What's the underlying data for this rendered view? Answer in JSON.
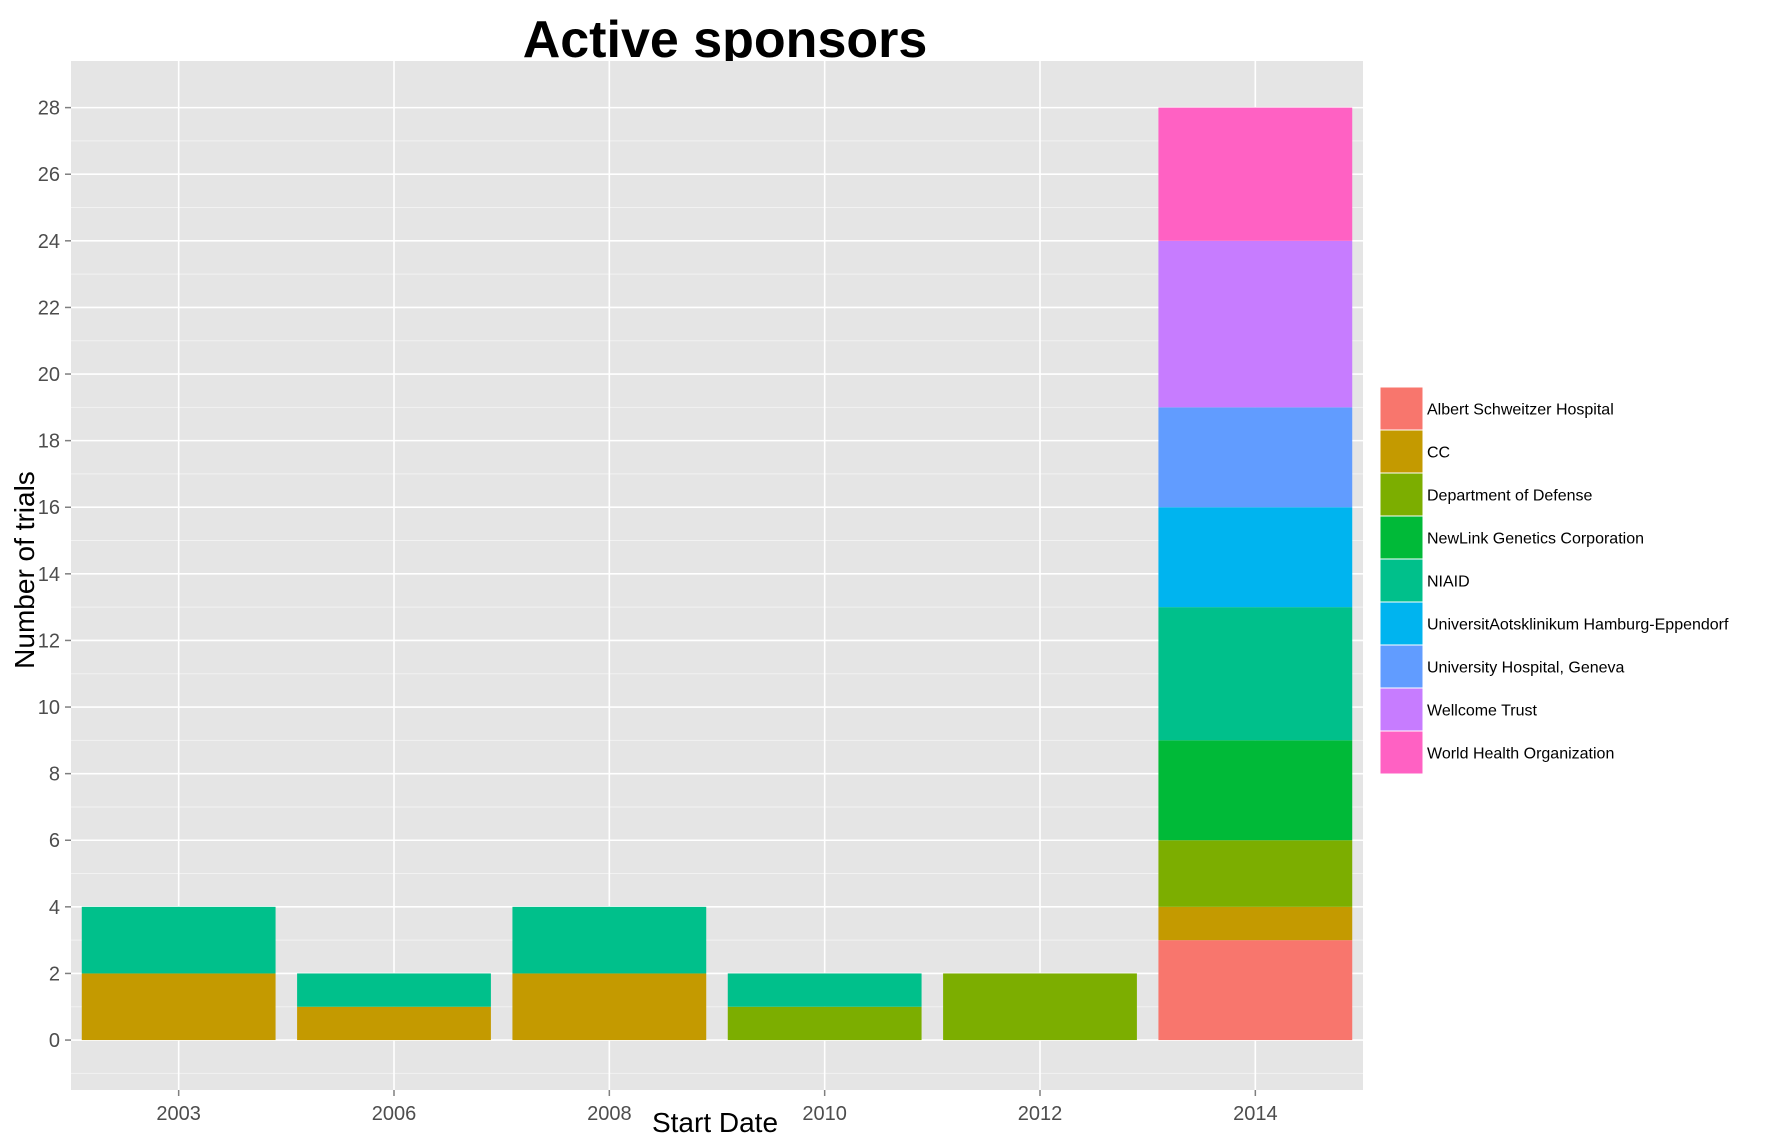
{
  "chart_data": {
    "type": "bar",
    "stacked": true,
    "title": "Active sponsors",
    "xlabel": "Start Date",
    "ylabel": "Number of trials",
    "categories": [
      "2003",
      "2006",
      "2008",
      "2010",
      "2012",
      "2014"
    ],
    "ylim": [
      -1.5,
      29.4
    ],
    "yticks": [
      0,
      2,
      4,
      6,
      8,
      10,
      12,
      14,
      16,
      18,
      20,
      22,
      24,
      26,
      28
    ],
    "grid": true,
    "legend_position": "right",
    "series": [
      {
        "name": "Albert Schweitzer Hospital",
        "color": "#F8766D",
        "values": [
          0,
          0,
          0,
          0,
          0,
          3
        ]
      },
      {
        "name": "CC",
        "color": "#C49A00",
        "values": [
          2,
          1,
          2,
          0,
          0,
          1
        ]
      },
      {
        "name": "Department of Defense",
        "color": "#7CAE00",
        "values": [
          0,
          0,
          0,
          1,
          2,
          2
        ]
      },
      {
        "name": "NewLink Genetics Corporation",
        "color": "#00BA38",
        "values": [
          0,
          0,
          0,
          0,
          0,
          3
        ]
      },
      {
        "name": "NIAID",
        "color": "#00C08B",
        "values": [
          2,
          1,
          2,
          1,
          0,
          4
        ]
      },
      {
        "name": "UniversitAotsklinikum Hamburg-Eppendorf",
        "color": "#00B4EF",
        "values": [
          0,
          0,
          0,
          0,
          0,
          3
        ]
      },
      {
        "name": "University Hospital, Geneva",
        "color": "#619CFF",
        "values": [
          0,
          0,
          0,
          0,
          0,
          3
        ]
      },
      {
        "name": "Wellcome Trust",
        "color": "#C77CFF",
        "values": [
          0,
          0,
          0,
          0,
          0,
          5
        ]
      },
      {
        "name": "World Health Organization",
        "color": "#FF61C3",
        "values": [
          0,
          0,
          0,
          0,
          0,
          4
        ]
      }
    ]
  }
}
